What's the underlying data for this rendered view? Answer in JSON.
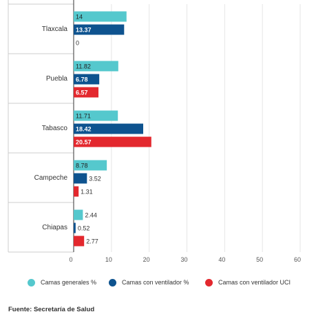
{
  "chart_data": {
    "type": "bar",
    "orientation": "horizontal",
    "categories": [
      "Tlaxcala",
      "Puebla",
      "Tabasco",
      "Campeche",
      "Chiapas"
    ],
    "series": [
      {
        "name": "Camas generales %",
        "color": "#55c8cd",
        "values": [
          14,
          11.82,
          11.71,
          8.78,
          2.44
        ]
      },
      {
        "name": "Camas con ventilador %",
        "color": "#0e538f",
        "values": [
          13.37,
          6.78,
          18.42,
          3.52,
          0.52
        ]
      },
      {
        "name": "Camas con ventilador UCI",
        "color": "#e3282e",
        "values": [
          0,
          6.57,
          20.57,
          1.31,
          2.77
        ]
      }
    ],
    "xlim": [
      0,
      60
    ],
    "xticks": [
      0,
      10,
      20,
      30,
      40,
      50,
      60
    ],
    "grid": true,
    "legend_position": "bottom"
  },
  "footer": {
    "source": "Fuente: Secretaría de Salud"
  }
}
